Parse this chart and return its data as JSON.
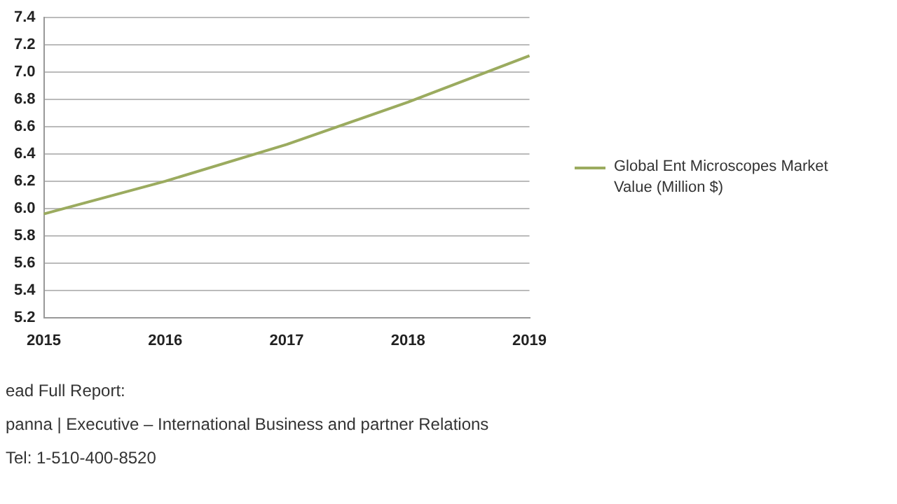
{
  "chart_data": {
    "type": "line",
    "categories": [
      "2015",
      "2016",
      "2017",
      "2018",
      "2019"
    ],
    "series": [
      {
        "name": "Global Ent Microscopes Market Value (Million $)",
        "color": "#9bab5f",
        "values": [
          5.96,
          6.2,
          6.47,
          6.78,
          7.12
        ]
      }
    ],
    "ylim": [
      5.2,
      7.4
    ],
    "yticks": [
      5.2,
      5.4,
      5.6,
      5.8,
      {
        "value": 6,
        "label": "6.0"
      },
      6.2,
      6.4,
      6.6,
      6.8,
      {
        "value": 7,
        "label": "7.0"
      },
      7.2,
      7.4
    ],
    "grid": "y",
    "legend": "right",
    "marker": "none",
    "annotations": [
      "ead Full Report:",
      "panna | Executive – International Business and partner Relations",
      "Tel: 1-510-400-8520"
    ]
  }
}
